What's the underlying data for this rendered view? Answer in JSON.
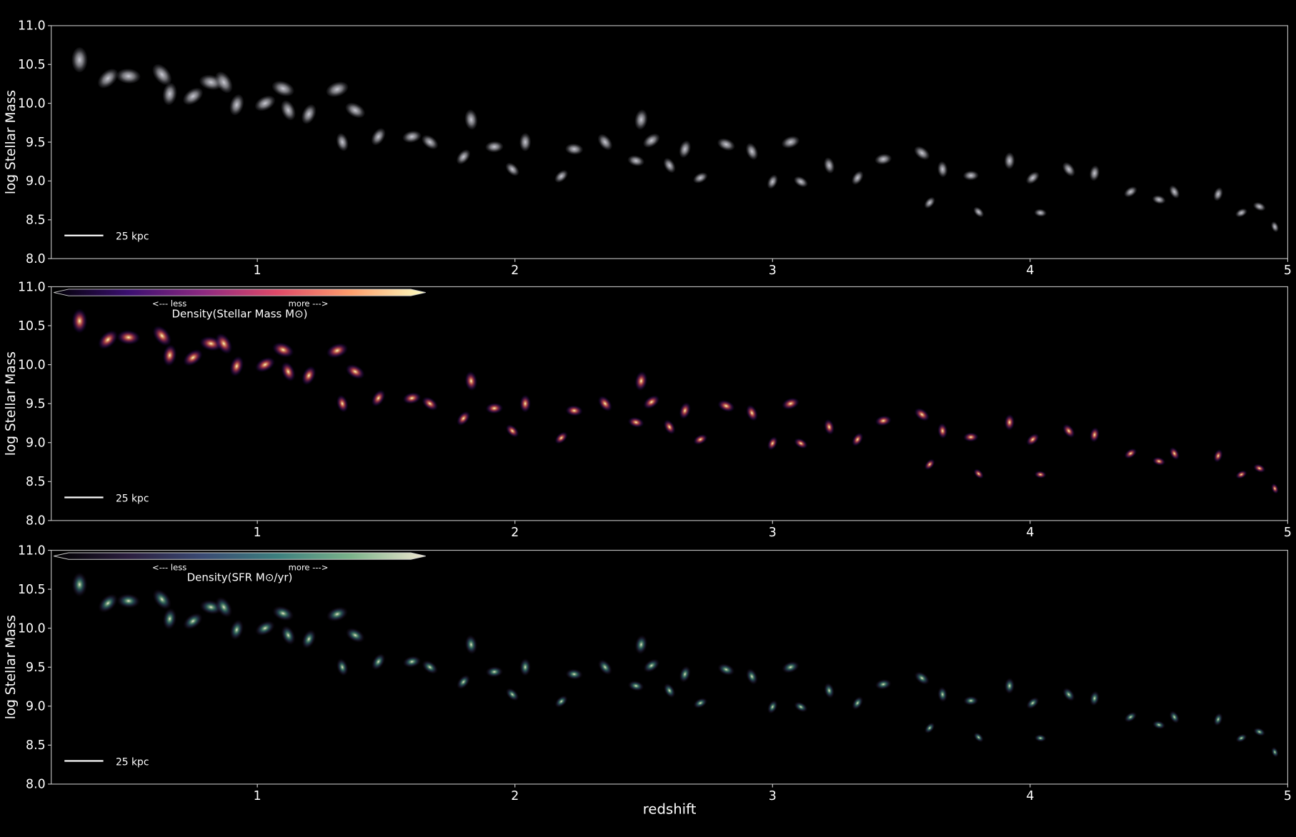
{
  "chart_data": [
    {
      "type": "scatter",
      "ylabel": "log Stellar Mass",
      "scale_bar": "25 kpc",
      "color": "#c9c9d2",
      "x": [
        0.31,
        0.42,
        0.5,
        0.63,
        0.66,
        0.75,
        0.82,
        0.87,
        0.92,
        1.03,
        1.1,
        1.12,
        1.2,
        1.31,
        1.38,
        1.33,
        1.47,
        1.6,
        1.67,
        1.83,
        1.8,
        1.92,
        1.99,
        2.04,
        2.18,
        2.23,
        2.35,
        2.49,
        2.53,
        2.47,
        2.6,
        2.66,
        2.72,
        2.82,
        2.92,
        3.0,
        3.07,
        3.11,
        3.22,
        3.33,
        3.43,
        3.58,
        3.66,
        3.61,
        3.77,
        3.8,
        3.92,
        4.01,
        4.04,
        4.15,
        4.25,
        4.39,
        4.5,
        4.56,
        4.73,
        4.82,
        4.89,
        4.95
      ],
      "values": [
        10.56,
        10.32,
        10.35,
        10.37,
        10.12,
        10.09,
        10.27,
        10.27,
        9.98,
        10.0,
        10.19,
        9.91,
        9.86,
        10.18,
        9.91,
        9.5,
        9.57,
        9.57,
        9.5,
        9.79,
        9.31,
        9.44,
        9.15,
        9.5,
        9.06,
        9.41,
        9.5,
        9.79,
        9.52,
        9.26,
        9.2,
        9.41,
        9.04,
        9.47,
        9.38,
        8.99,
        9.5,
        8.99,
        9.2,
        9.04,
        9.28,
        9.36,
        9.15,
        8.72,
        9.07,
        8.6,
        9.26,
        9.04,
        8.59,
        9.15,
        9.1,
        8.86,
        8.76,
        8.86,
        8.83,
        8.59,
        8.67,
        8.41
      ],
      "xlim": [
        0.2,
        5
      ],
      "xticks": [
        1,
        2,
        3,
        4,
        5
      ],
      "ylim": [
        8,
        11
      ],
      "yticks": [
        {
          "value": 8,
          "label": "8.0"
        },
        {
          "value": 8.5,
          "label": "8.5"
        },
        {
          "value": 9,
          "label": "9.0"
        },
        {
          "value": 9.5,
          "label": "9.5"
        },
        {
          "value": 10,
          "label": "10.0"
        },
        {
          "value": 10.5,
          "label": "10.5"
        },
        {
          "value": 11,
          "label": "11.0"
        }
      ]
    },
    {
      "type": "scatter",
      "ylabel": "log Stellar Mass",
      "scale_bar": "25 kpc",
      "colorbar": {
        "label": "Density(Stellar Mass M⊙)",
        "less": "<--- less",
        "more": "more --->",
        "colormap": [
          "#000004",
          "#3b0f70",
          "#8c2981",
          "#de4968",
          "#fe9f6d",
          "#fcfdbf"
        ]
      },
      "x": [
        0.31,
        0.42,
        0.5,
        0.63,
        0.66,
        0.75,
        0.82,
        0.87,
        0.92,
        1.03,
        1.1,
        1.12,
        1.2,
        1.31,
        1.38,
        1.33,
        1.47,
        1.6,
        1.67,
        1.83,
        1.8,
        1.92,
        1.99,
        2.04,
        2.18,
        2.23,
        2.35,
        2.49,
        2.53,
        2.47,
        2.6,
        2.66,
        2.72,
        2.82,
        2.92,
        3.0,
        3.07,
        3.11,
        3.22,
        3.33,
        3.43,
        3.58,
        3.66,
        3.61,
        3.77,
        3.8,
        3.92,
        4.01,
        4.04,
        4.15,
        4.25,
        4.39,
        4.5,
        4.56,
        4.73,
        4.82,
        4.89,
        4.95
      ],
      "values": [
        10.56,
        10.32,
        10.35,
        10.37,
        10.12,
        10.09,
        10.27,
        10.27,
        9.98,
        10.0,
        10.19,
        9.91,
        9.86,
        10.18,
        9.91,
        9.5,
        9.57,
        9.57,
        9.5,
        9.79,
        9.31,
        9.44,
        9.15,
        9.5,
        9.06,
        9.41,
        9.5,
        9.79,
        9.52,
        9.26,
        9.2,
        9.41,
        9.04,
        9.47,
        9.38,
        8.99,
        9.5,
        8.99,
        9.2,
        9.04,
        9.28,
        9.36,
        9.15,
        8.72,
        9.07,
        8.6,
        9.26,
        9.04,
        8.59,
        9.15,
        9.1,
        8.86,
        8.76,
        8.86,
        8.83,
        8.59,
        8.67,
        8.41
      ],
      "xlim": [
        0.2,
        5
      ],
      "xticks": [
        1,
        2,
        3,
        4,
        5
      ],
      "ylim": [
        8,
        11
      ],
      "yticks": [
        {
          "value": 8,
          "label": "8.0"
        },
        {
          "value": 8.5,
          "label": "8.5"
        },
        {
          "value": 9,
          "label": "9.0"
        },
        {
          "value": 9.5,
          "label": "9.5"
        },
        {
          "value": 10,
          "label": "10.0"
        },
        {
          "value": 10.5,
          "label": "10.5"
        },
        {
          "value": 11,
          "label": "11.0"
        }
      ]
    },
    {
      "type": "scatter",
      "ylabel": "log Stellar Mass",
      "xlabel": "redshift",
      "scale_bar": "25 kpc",
      "colorbar": {
        "label": "Density(SFR M⊙/yr)",
        "less": "<--- less",
        "more": "more --->",
        "colormap": [
          "#000000",
          "#2b1e3e",
          "#3a4a73",
          "#3c7f7e",
          "#7bb38a",
          "#efe6cf"
        ]
      },
      "x": [
        0.31,
        0.42,
        0.5,
        0.63,
        0.66,
        0.75,
        0.82,
        0.87,
        0.92,
        1.03,
        1.1,
        1.12,
        1.2,
        1.31,
        1.38,
        1.33,
        1.47,
        1.6,
        1.67,
        1.83,
        1.8,
        1.92,
        1.99,
        2.04,
        2.18,
        2.23,
        2.35,
        2.49,
        2.53,
        2.47,
        2.6,
        2.66,
        2.72,
        2.82,
        2.92,
        3.0,
        3.07,
        3.11,
        3.22,
        3.33,
        3.43,
        3.58,
        3.66,
        3.61,
        3.77,
        3.8,
        3.92,
        4.01,
        4.04,
        4.15,
        4.25,
        4.39,
        4.5,
        4.56,
        4.73,
        4.82,
        4.89,
        4.95
      ],
      "values": [
        10.56,
        10.32,
        10.35,
        10.37,
        10.12,
        10.09,
        10.27,
        10.27,
        9.98,
        10.0,
        10.19,
        9.91,
        9.86,
        10.18,
        9.91,
        9.5,
        9.57,
        9.57,
        9.5,
        9.79,
        9.31,
        9.44,
        9.15,
        9.5,
        9.06,
        9.41,
        9.5,
        9.79,
        9.52,
        9.26,
        9.2,
        9.41,
        9.04,
        9.47,
        9.38,
        8.99,
        9.5,
        8.99,
        9.2,
        9.04,
        9.28,
        9.36,
        9.15,
        8.72,
        9.07,
        8.6,
        9.26,
        9.04,
        8.59,
        9.15,
        9.1,
        8.86,
        8.76,
        8.86,
        8.83,
        8.59,
        8.67,
        8.41
      ],
      "xlim": [
        0.2,
        5
      ],
      "xticks": [
        1,
        2,
        3,
        4,
        5
      ],
      "ylim": [
        8,
        11
      ],
      "yticks": [
        {
          "value": 8,
          "label": "8.0"
        },
        {
          "value": 8.5,
          "label": "8.5"
        },
        {
          "value": 9,
          "label": "9.0"
        },
        {
          "value": 9.5,
          "label": "9.5"
        },
        {
          "value": 10,
          "label": "10.0"
        },
        {
          "value": 10.5,
          "label": "10.5"
        },
        {
          "value": 11,
          "label": "11.0"
        }
      ]
    }
  ]
}
